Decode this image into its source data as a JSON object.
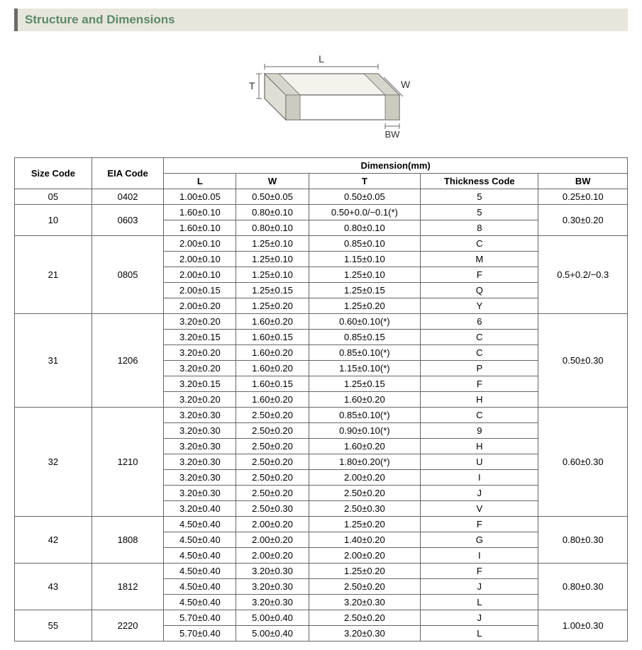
{
  "section_title": "Structure and Dimensions",
  "colors": {
    "accent_bar": "#6a6a6a",
    "header_bg": "#e8e6dc",
    "title_color": "#5a8a6a",
    "border_color": "#666666"
  },
  "diagram": {
    "labels": {
      "L": "L",
      "W": "W",
      "T": "T",
      "BW": "BW"
    },
    "stroke": "#6a6a6a",
    "fill": "#f4f2ea"
  },
  "table": {
    "header_group_label": "Dimension(mm)",
    "columns": {
      "size": "Size Code",
      "eia": "EIA Code",
      "L": "L",
      "W": "W",
      "T": "T",
      "thick": "Thickness  Code",
      "BW": "BW"
    },
    "groups": [
      {
        "size": "05",
        "eia": "0402",
        "bw": "0.25±0.10",
        "rows": [
          {
            "L": "1.00±0.05",
            "W": "0.50±0.05",
            "T": "0.50±0.05",
            "tc": "5"
          }
        ]
      },
      {
        "size": "10",
        "eia": "0603",
        "bw": "0.30±0.20",
        "rows": [
          {
            "L": "1.60±0.10",
            "W": "0.80±0.10",
            "T": "0.50+0.0/−0.1(*)",
            "tc": "5"
          },
          {
            "L": "1.60±0.10",
            "W": "0.80±0.10",
            "T": "0.80±0.10",
            "tc": "8"
          }
        ]
      },
      {
        "size": "21",
        "eia": "0805",
        "bw": "0.5+0.2/−0.3",
        "rows": [
          {
            "L": "2.00±0.10",
            "W": "1.25±0.10",
            "T": "0.85±0.10",
            "tc": "C"
          },
          {
            "L": "2.00±0.10",
            "W": "1.25±0.10",
            "T": "1.15±0.10",
            "tc": "M"
          },
          {
            "L": "2.00±0.10",
            "W": "1.25±0.10",
            "T": "1.25±0.10",
            "tc": "F"
          },
          {
            "L": "2.00±0.15",
            "W": "1.25±0.15",
            "T": "1.25±0.15",
            "tc": "Q"
          },
          {
            "L": "2.00±0.20",
            "W": "1.25±0.20",
            "T": "1.25±0.20",
            "tc": "Y"
          }
        ]
      },
      {
        "size": "31",
        "eia": "1206",
        "bw": "0.50±0.30",
        "rows": [
          {
            "L": "3.20±0.20",
            "W": "1.60±0.20",
            "T": "0.60±0.10(*)",
            "tc": "6"
          },
          {
            "L": "3.20±0.15",
            "W": "1.60±0.15",
            "T": "0.85±0.15",
            "tc": "C"
          },
          {
            "L": "3.20±0.20",
            "W": "1.60±0.20",
            "T": "0.85±0.10(*)",
            "tc": "C"
          },
          {
            "L": "3.20±0.20",
            "W": "1.60±0.20",
            "T": "1.15±0.10(*)",
            "tc": "P"
          },
          {
            "L": "3.20±0.15",
            "W": "1.60±0.15",
            "T": "1.25±0.15",
            "tc": "F"
          },
          {
            "L": "3.20±0.20",
            "W": "1.60±0.20",
            "T": "1.60±0.20",
            "tc": "H"
          }
        ]
      },
      {
        "size": "32",
        "eia": "1210",
        "bw": "0.60±0.30",
        "rows": [
          {
            "L": "3.20±0.30",
            "W": "2.50±0.20",
            "T": "0.85±0.10(*)",
            "tc": "C"
          },
          {
            "L": "3.20±0.30",
            "W": "2.50±0.20",
            "T": "0.90±0.10(*)",
            "tc": "9"
          },
          {
            "L": "3.20±0.30",
            "W": "2.50±0.20",
            "T": "1.60±0.20",
            "tc": "H"
          },
          {
            "L": "3.20±0.30",
            "W": "2.50±0.20",
            "T": "1.80±0.20(*)",
            "tc": "U"
          },
          {
            "L": "3.20±0.30",
            "W": "2.50±0.20",
            "T": "2.00±0.20",
            "tc": "I"
          },
          {
            "L": "3.20±0.30",
            "W": "2.50±0.20",
            "T": "2.50±0.20",
            "tc": "J"
          },
          {
            "L": "3.20±0.40",
            "W": "2.50±0.30",
            "T": "2.50±0.30",
            "tc": "V"
          }
        ]
      },
      {
        "size": "42",
        "eia": "1808",
        "bw": "0.80±0.30",
        "rows": [
          {
            "L": "4.50±0.40",
            "W": "2.00±0.20",
            "T": "1.25±0.20",
            "tc": "F"
          },
          {
            "L": "4.50±0.40",
            "W": "2.00±0.20",
            "T": "1.40±0.20",
            "tc": "G"
          },
          {
            "L": "4.50±0.40",
            "W": "2.00±0.20",
            "T": "2.00±0.20",
            "tc": "I"
          }
        ]
      },
      {
        "size": "43",
        "eia": "1812",
        "bw": "0.80±0.30",
        "rows": [
          {
            "L": "4.50±0.40",
            "W": "3.20±0.30",
            "T": "1.25±0.20",
            "tc": "F"
          },
          {
            "L": "4.50±0.40",
            "W": "3.20±0.30",
            "T": "2.50±0.20",
            "tc": "J"
          },
          {
            "L": "4.50±0.40",
            "W": "3.20±0.30",
            "T": "3.20±0.30",
            "tc": "L"
          }
        ]
      },
      {
        "size": "55",
        "eia": "2220",
        "bw": "1.00±0.30",
        "rows": [
          {
            "L": "5.70±0.40",
            "W": "5.00±0.40",
            "T": "2.50±0.20",
            "tc": "J"
          },
          {
            "L": "5.70±0.40",
            "W": "5.00±0.40",
            "T": "3.20±0.30",
            "tc": "L"
          }
        ]
      }
    ]
  }
}
